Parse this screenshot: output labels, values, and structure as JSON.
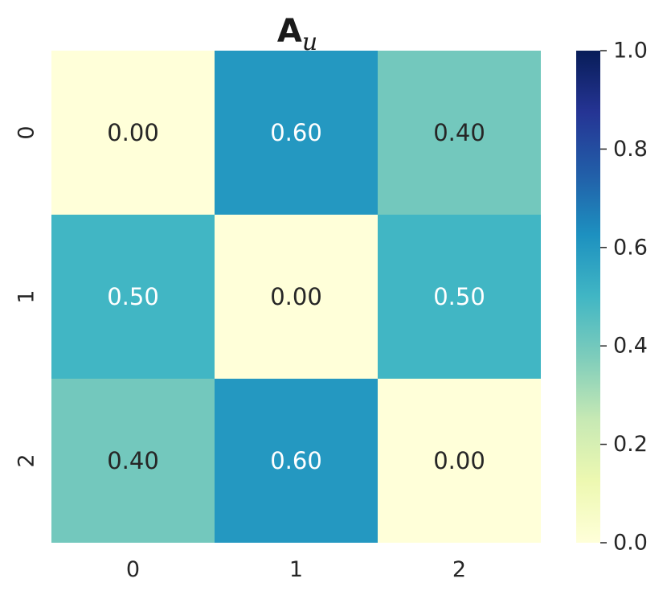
{
  "chart_data": {
    "type": "heatmap",
    "title": {
      "main": "A",
      "subscript": "u"
    },
    "x_categories": [
      "0",
      "1",
      "2"
    ],
    "y_categories": [
      "0",
      "1",
      "2"
    ],
    "values": [
      [
        0.0,
        0.6,
        0.4
      ],
      [
        0.5,
        0.0,
        0.5
      ],
      [
        0.4,
        0.6,
        0.0
      ]
    ],
    "cell_labels": [
      [
        "0.00",
        "0.60",
        "0.40"
      ],
      [
        "0.50",
        "0.00",
        "0.50"
      ],
      [
        "0.40",
        "0.60",
        "0.00"
      ]
    ],
    "colormap": "YlGnBu",
    "vmin": 0.0,
    "vmax": 1.0,
    "colorbar_ticks": [
      "0.0",
      "0.2",
      "0.4",
      "0.6",
      "0.8",
      "1.0"
    ],
    "colorbar_tick_values": [
      0.0,
      0.2,
      0.4,
      0.6,
      0.8,
      1.0
    ],
    "colormap_stops": [
      "#ffffd9",
      "#edf8b1",
      "#c7e9b4",
      "#7fcdbb",
      "#41b6c4",
      "#1d91c0",
      "#225ea8",
      "#253494",
      "#081d58"
    ],
    "colors": {
      "dark_text": "#262626",
      "light_text": "#ffffff"
    }
  }
}
